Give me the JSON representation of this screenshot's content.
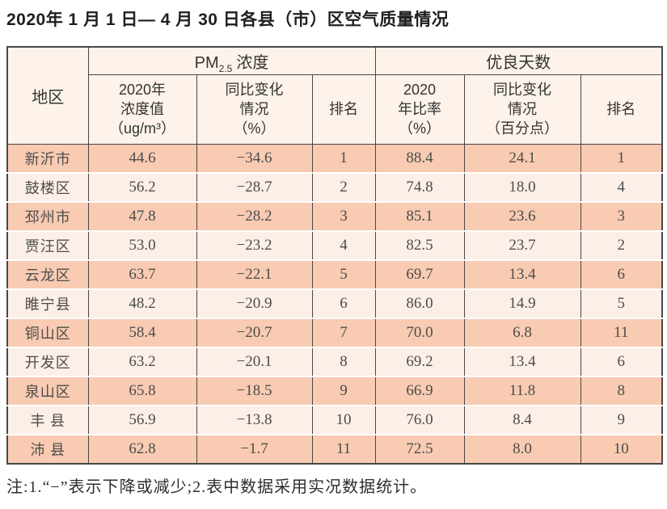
{
  "title": "2020年 1 月 1 日— 4 月 30 日各县（市）区空气质量情况",
  "colors": {
    "row_odd": "#f8cbb2",
    "row_even": "#fcefe7",
    "header_bg": "#fdf3ea",
    "border_dark": "#474747"
  },
  "table": {
    "region_header": "地区",
    "pm_group": {
      "prefix": "PM",
      "sub": "2.5",
      "suffix": "浓度"
    },
    "good_group": "优良天数",
    "sub_headers": {
      "pm_value": "2020年\n浓度值\n（ug/m³）",
      "pm_change": "同比变化\n情况\n（%）",
      "pm_rank": "排名",
      "good_rate": "2020\n年比率\n（%）",
      "good_change": "同比变化\n情况\n（百分点）",
      "good_rank": "排名"
    },
    "rows": [
      {
        "region": "新沂市",
        "pm_value": "44.6",
        "pm_change": "−34.6",
        "pm_rank": "1",
        "good_rate": "88.4",
        "good_change": "24.1",
        "good_rank": "1"
      },
      {
        "region": "鼓楼区",
        "pm_value": "56.2",
        "pm_change": "−28.7",
        "pm_rank": "2",
        "good_rate": "74.8",
        "good_change": "18.0",
        "good_rank": "4"
      },
      {
        "region": "邳州市",
        "pm_value": "47.8",
        "pm_change": "−28.2",
        "pm_rank": "3",
        "good_rate": "85.1",
        "good_change": "23.6",
        "good_rank": "3"
      },
      {
        "region": "贾汪区",
        "pm_value": "53.0",
        "pm_change": "−23.2",
        "pm_rank": "4",
        "good_rate": "82.5",
        "good_change": "23.7",
        "good_rank": "2"
      },
      {
        "region": "云龙区",
        "pm_value": "63.7",
        "pm_change": "−22.1",
        "pm_rank": "5",
        "good_rate": "69.7",
        "good_change": "13.4",
        "good_rank": "6"
      },
      {
        "region": "睢宁县",
        "pm_value": "48.2",
        "pm_change": "−20.9",
        "pm_rank": "6",
        "good_rate": "86.0",
        "good_change": "14.9",
        "good_rank": "5"
      },
      {
        "region": "铜山区",
        "pm_value": "58.4",
        "pm_change": "−20.7",
        "pm_rank": "7",
        "good_rate": "70.0",
        "good_change": "6.8",
        "good_rank": "11"
      },
      {
        "region": "开发区",
        "pm_value": "63.2",
        "pm_change": "−20.1",
        "pm_rank": "8",
        "good_rate": "69.2",
        "good_change": "13.4",
        "good_rank": "6"
      },
      {
        "region": "泉山区",
        "pm_value": "65.8",
        "pm_change": "−18.5",
        "pm_rank": "9",
        "good_rate": "66.9",
        "good_change": "11.8",
        "good_rank": "8"
      },
      {
        "region": "丰 县",
        "pm_value": "56.9",
        "pm_change": "−13.8",
        "pm_rank": "10",
        "good_rate": "76.0",
        "good_change": "8.4",
        "good_rank": "9"
      },
      {
        "region": "沛 县",
        "pm_value": "62.8",
        "pm_change": "−1.7",
        "pm_rank": "11",
        "good_rate": "72.5",
        "good_change": "8.0",
        "good_rank": "10"
      }
    ]
  },
  "note": "注:1.“−”表示下降或减少;2.表中数据采用实况数据统计。"
}
